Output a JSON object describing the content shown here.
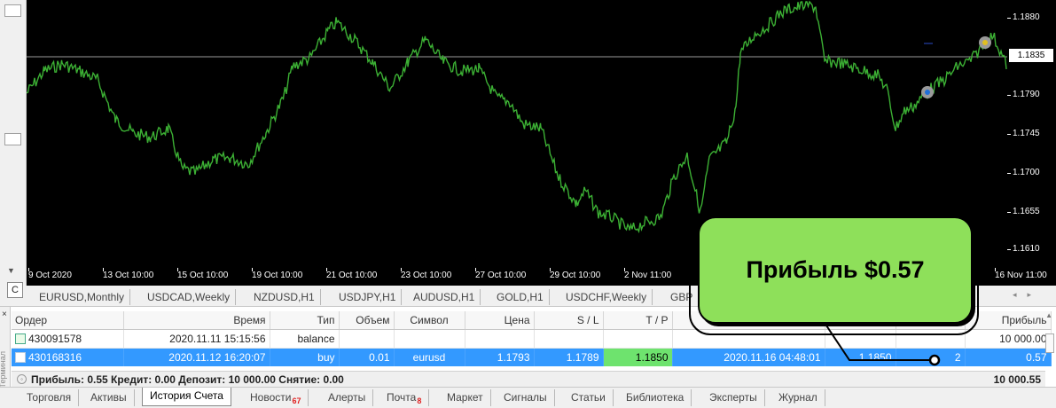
{
  "chart": {
    "price_ticks": [
      "1.1880",
      "1.1790",
      "1.1745",
      "1.1700",
      "1.1655",
      "1.1610"
    ],
    "current_price": "1.1835",
    "time_labels": [
      "9 Oct 2020",
      "13 Oct 10:00",
      "15 Oct 10:00",
      "19 Oct 10:00",
      "21 Oct 10:00",
      "23 Oct 10:00",
      "27 Oct 10:00",
      "29 Oct 10:00",
      "2 Nov 11:00",
      "16 Nov 11:00"
    ],
    "rail_button_label": "C",
    "line_color": "#3cb034",
    "background_color": "#000000"
  },
  "symbol_tabs": [
    "EURUSD,Monthly",
    "USDCAD,Weekly",
    "NZDUSD,H1",
    "USDJPY,H1",
    "AUDUSD,H1",
    "GOLD,H1",
    "USDCHF,Weekly",
    "GBP"
  ],
  "terminal": {
    "side_label": "Терминал",
    "columns": {
      "order": "Ордер",
      "time": "Время",
      "type": "Тип",
      "volume": "Объем",
      "symbol": "Символ",
      "price": "Цена",
      "sl": "S / L",
      "tp": "T / P",
      "close_time": "",
      "close_price": "",
      "swap": "",
      "profit": "Прибыль"
    },
    "rows": [
      {
        "order": "430091578",
        "time": "2020.11.11 15:15:56",
        "type": "balance",
        "volume": "",
        "symbol": "",
        "price": "",
        "sl": "",
        "tp": "",
        "close_time": "",
        "close_price": "",
        "swap": "",
        "profit": "10 000.00"
      },
      {
        "order": "430168316",
        "time": "2020.11.12 16:20:07",
        "type": "buy",
        "volume": "0.01",
        "symbol": "eurusd",
        "price": "1.1793",
        "sl": "1.1789",
        "tp": "1.1850",
        "close_time": "2020.11.16 04:48:01",
        "close_price": "1.1850",
        "swap": "2",
        "profit": "0.57"
      }
    ],
    "summary": "Прибыль: 0.55  Кредит: 0.00  Депозит: 10 000.00  Снятие: 0.00",
    "summary_total": "10 000.55"
  },
  "bottom_tabs": [
    {
      "label": "Торговля",
      "badge": ""
    },
    {
      "label": "Активы",
      "badge": ""
    },
    {
      "label": "История Счета",
      "badge": "",
      "active": true
    },
    {
      "label": "Новости",
      "badge": "67"
    },
    {
      "label": "Алерты",
      "badge": ""
    },
    {
      "label": "Почта",
      "badge": "8"
    },
    {
      "label": "Маркет",
      "badge": ""
    },
    {
      "label": "Сигналы",
      "badge": ""
    },
    {
      "label": "Статьи",
      "badge": ""
    },
    {
      "label": "Библиотека",
      "badge": ""
    },
    {
      "label": "Эксперты",
      "badge": ""
    },
    {
      "label": "Журнал",
      "badge": ""
    }
  ],
  "callout": {
    "text": "Прибыль $0.57",
    "color": "#8ee05a"
  }
}
